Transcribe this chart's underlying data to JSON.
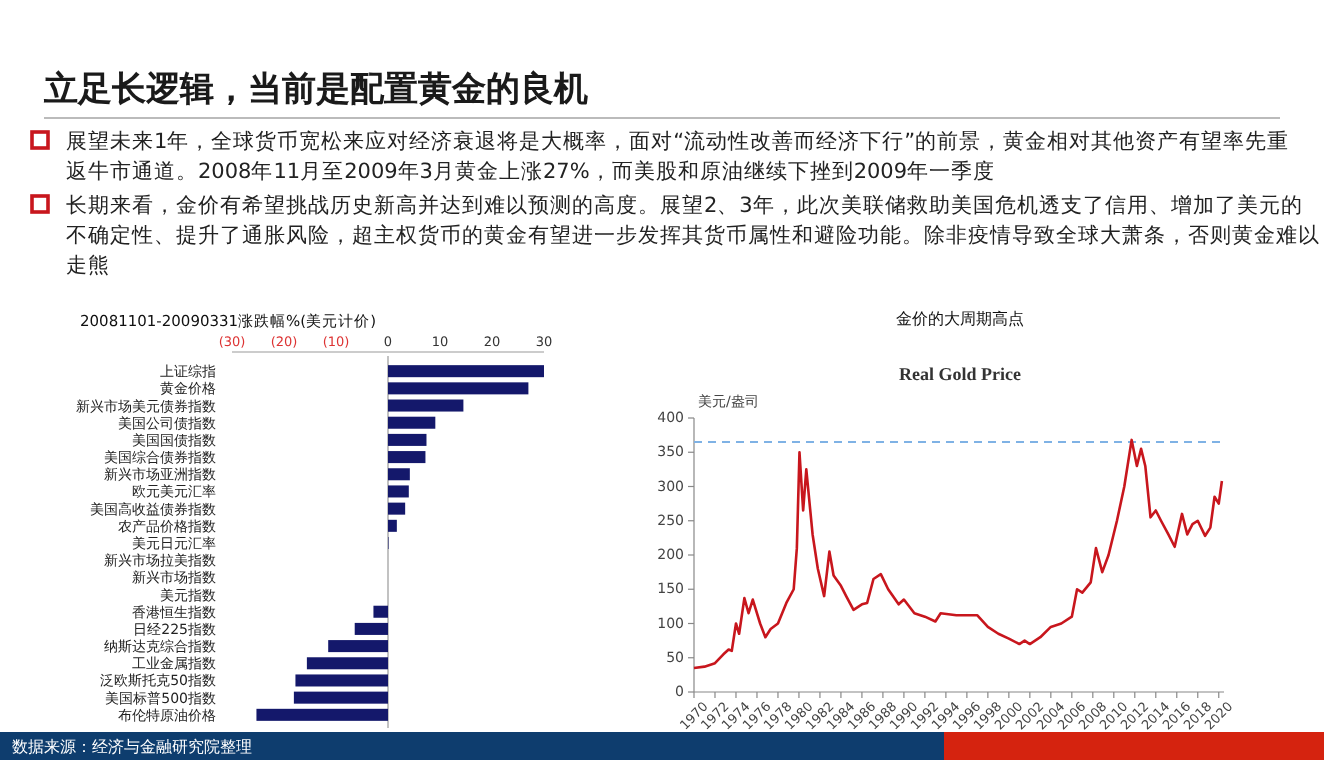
{
  "chart_data": [
    {
      "type": "other",
      "title": "立足长逻辑，当前是配置黄金的良机",
      "annotations": [
        "展望未来1年，全球货币宽松来应对经济衰退将是大概率，面对“流动性改善而经济下行”的前景，黄金相对其他资产有望率先重返牛市通道。2008年11月至2009年3月黄金上涨27%，而美股和原油继续下挫到2009年一季度",
        "长期来看，金价有希望挑战历史新高并达到难以预测的高度。展望2、3年，此次美联储救助美国危机透支了信用、增加了美元的不确定性、提升了通胀风险，超主权货币的黄金有望进一步发挥其货币属性和避险功能。除非疫情导致全球大萧条，否则黄金难以走熊"
      ]
    },
    {
      "type": "bar",
      "orientation": "horizontal",
      "title": "20081101-20090331涨跌幅%(美元计价)",
      "color": "#14186b",
      "categories": [
        "上证综指",
        "黄金价格",
        "新兴市场美元债券指数",
        "美国公司债指数",
        "美国国债指数",
        "美国综合债券指数",
        "新兴市场亚洲指数",
        "欧元美元汇率",
        "美国高收益债券指数",
        "农产品价格指数",
        "美元日元汇率",
        "新兴市场拉美指数",
        "新兴市场指数",
        "美元指数",
        "香港恒生指数",
        "日经225指数",
        "纳斯达克综合指数",
        "工业金属指数",
        "泛欧斯托克50指数",
        "美国标普500指数",
        "布伦特原油价格"
      ],
      "values": [
        30,
        27,
        14.5,
        9.1,
        7.4,
        7.2,
        4.2,
        4.0,
        3.3,
        1.7,
        0.1,
        0,
        0,
        0,
        -2.8,
        -6.4,
        -11.5,
        -15.6,
        -17.8,
        -18.1,
        -25.3
      ],
      "xlim": [
        -30,
        30
      ],
      "xticks": [
        {
          "value": -30,
          "label": "(30)"
        },
        {
          "value": -20,
          "label": "(20)"
        },
        {
          "value": -10,
          "label": "(10)"
        },
        0,
        10,
        20,
        30
      ],
      "annotations": [
        "数据来源：经济与金融研究院整理"
      ]
    },
    {
      "type": "line",
      "title": "金价的大周期高点",
      "subtitle": "Real Gold Price",
      "ylabel": "美元/盎司",
      "xlim": [
        1970,
        2020.5
      ],
      "xticks": [
        1970,
        1972,
        1974,
        1976,
        1978,
        1980,
        1982,
        1984,
        1986,
        1988,
        1990,
        1992,
        1994,
        1996,
        1998,
        2000,
        2002,
        2004,
        2006,
        2008,
        2010,
        2012,
        2014,
        2016,
        2018,
        2020
      ],
      "ylim": [
        0,
        400
      ],
      "yticks": [
        0,
        50,
        100,
        150,
        200,
        250,
        300,
        350,
        400
      ],
      "ref_lines": [
        {
          "axis": "y",
          "value": 365,
          "color": "#7fb2e5",
          "line_style": "dashed"
        }
      ],
      "series": [
        {
          "color": "#c8161d",
          "x": [
            1970,
            1971,
            1972,
            1972.8,
            1973.3,
            1973.6,
            1974,
            1974.3,
            1974.8,
            1975.2,
            1975.6,
            1976.3,
            1976.8,
            1977.3,
            1978,
            1978.8,
            1979.5,
            1979.8,
            1980.05,
            1980.4,
            1980.7,
            1981.3,
            1981.8,
            1982.4,
            1982.9,
            1983.3,
            1984,
            1984.5,
            1985.2,
            1986,
            1986.5,
            1987.1,
            1987.8,
            1988.5,
            1989.5,
            1990,
            1991,
            1992,
            1993,
            1993.5,
            1995,
            1997,
            1998,
            1999,
            2000,
            2001,
            2001.5,
            2002,
            2003,
            2004,
            2005,
            2006,
            2006.5,
            2007,
            2007.8,
            2008.3,
            2008.9,
            2009.5,
            2010.3,
            2011,
            2011.7,
            2012.2,
            2012.6,
            2013,
            2013.5,
            2014,
            2014.5,
            2015.2,
            2015.8,
            2016.5,
            2017,
            2017.5,
            2018,
            2018.7,
            2019.2,
            2019.6,
            2020,
            2020.3
          ],
          "values": [
            35,
            37,
            42,
            55,
            62,
            60,
            100,
            85,
            137,
            115,
            135,
            100,
            80,
            92,
            100,
            130,
            150,
            210,
            350,
            265,
            325,
            230,
            180,
            140,
            205,
            170,
            155,
            140,
            120,
            128,
            130,
            165,
            172,
            150,
            128,
            135,
            115,
            110,
            103,
            115,
            112,
            112,
            95,
            85,
            78,
            70,
            75,
            70,
            80,
            95,
            100,
            110,
            150,
            145,
            160,
            210,
            175,
            200,
            250,
            300,
            368,
            330,
            355,
            330,
            255,
            265,
            250,
            230,
            212,
            260,
            230,
            245,
            250,
            228,
            240,
            285,
            275,
            308
          ]
        }
      ]
    }
  ]
}
